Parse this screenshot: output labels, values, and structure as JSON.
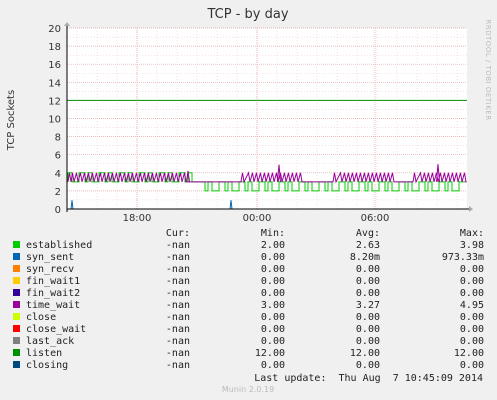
{
  "chart_data": {
    "type": "line",
    "title": "TCP - by day",
    "ylabel": "TCP Sockets",
    "xlabel": "",
    "ylim": [
      0,
      20
    ],
    "yticks": [
      0,
      2,
      4,
      6,
      8,
      10,
      12,
      14,
      16,
      18,
      20
    ],
    "xtick_labels": [
      "18:00",
      "00:00",
      "06:00"
    ],
    "grid": true,
    "side_text": "RRDTOOL / TOBI OETIKER",
    "footer": "Munin 2.0.19",
    "legend_header": {
      "cur": "Cur:",
      "min": "Min:",
      "avg": "Avg:",
      "max": "Max:"
    },
    "last_update": "Last update:  Thu Aug  7 10:45:09 2014",
    "legend": [
      {
        "name": "established",
        "color": "#00cc00",
        "cur": "-nan",
        "min": "2.00",
        "avg": "2.63",
        "max": "3.98"
      },
      {
        "name": "syn_sent",
        "color": "#0066b3",
        "cur": "-nan",
        "min": "0.00",
        "avg": "8.20m",
        "max": "973.33m"
      },
      {
        "name": "syn_recv",
        "color": "#ff8000",
        "cur": "-nan",
        "min": "0.00",
        "avg": "0.00",
        "max": "0.00"
      },
      {
        "name": "fin_wait1",
        "color": "#ffcc00",
        "cur": "-nan",
        "min": "0.00",
        "avg": "0.00",
        "max": "0.00"
      },
      {
        "name": "fin_wait2",
        "color": "#330099",
        "cur": "-nan",
        "min": "0.00",
        "avg": "0.00",
        "max": "0.00"
      },
      {
        "name": "time_wait",
        "color": "#990099",
        "cur": "-nan",
        "min": "3.00",
        "avg": "3.27",
        "max": "4.95"
      },
      {
        "name": "close",
        "color": "#ccff00",
        "cur": "-nan",
        "min": "0.00",
        "avg": "0.00",
        "max": "0.00"
      },
      {
        "name": "close_wait",
        "color": "#ff0000",
        "cur": "-nan",
        "min": "0.00",
        "avg": "0.00",
        "max": "0.00"
      },
      {
        "name": "last_ack",
        "color": "#808080",
        "cur": "-nan",
        "min": "0.00",
        "avg": "0.00",
        "max": "0.00"
      },
      {
        "name": "listen",
        "color": "#008f00",
        "cur": "-nan",
        "min": "12.00",
        "avg": "12.00",
        "max": "12.00"
      },
      {
        "name": "closing",
        "color": "#00487d",
        "cur": "-nan",
        "min": "0.00",
        "avg": "0.00",
        "max": "0.00"
      }
    ]
  }
}
